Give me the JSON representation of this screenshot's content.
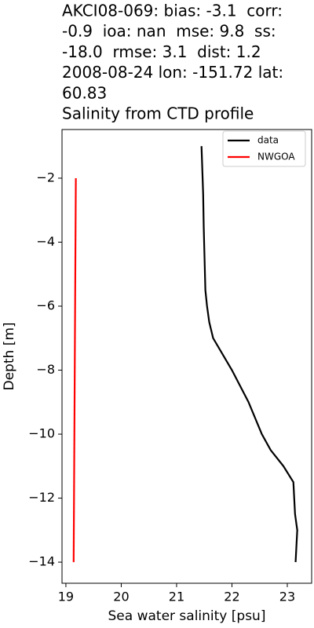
{
  "chart_data": {
    "type": "line",
    "title": [
      "AKCI08-069: bias: -3.1  corr:",
      "-0.9  ioa: nan  mse: 9.8  ss:",
      "-18.0  rmse: 3.1  dist: 1.2",
      "2008-08-24 lon: -151.72 lat:",
      "60.83",
      "Salinity from CTD profile"
    ],
    "x_label": "Sea water salinity [psu]",
    "y_label": "Depth [m]",
    "xlim": [
      18.93,
      23.44
    ],
    "ylim": [
      -14.66,
      -0.48
    ],
    "xticks": [
      19,
      20,
      21,
      22,
      23
    ],
    "yticks": [
      {
        "value": -2,
        "label": "−2"
      },
      {
        "value": -4,
        "label": "−4"
      },
      {
        "value": -6,
        "label": "−6"
      },
      {
        "value": -8,
        "label": "−8"
      },
      {
        "value": -10,
        "label": "−10"
      },
      {
        "value": -12,
        "label": "−12"
      },
      {
        "value": -14,
        "label": "−14"
      }
    ],
    "legend": "upper right",
    "series": [
      {
        "name": "data",
        "color": "#000000",
        "x": [
          21.45,
          21.48,
          21.49,
          21.52,
          21.55,
          21.59,
          21.66,
          22.0,
          22.3,
          22.54,
          22.7,
          22.93,
          23.11,
          23.14,
          23.18,
          23.15
        ],
        "values": [
          -1,
          -2.5,
          -3.5,
          -5.5,
          -6,
          -6.5,
          -7,
          -8,
          -9,
          -10,
          -10.5,
          -11,
          -11.5,
          -12.5,
          -13,
          -14
        ]
      },
      {
        "name": "NWGOA",
        "color": "#ff0000",
        "x": [
          19.18,
          19.14
        ],
        "values": [
          -2,
          -14
        ]
      }
    ]
  }
}
